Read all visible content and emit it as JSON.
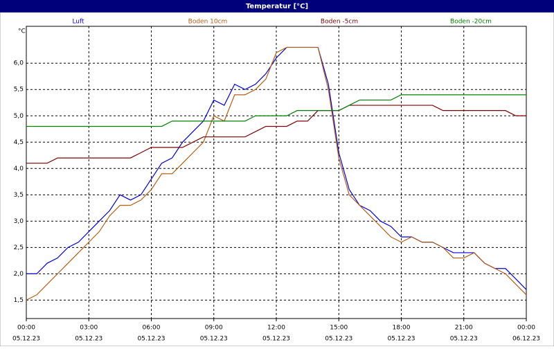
{
  "chart_data": {
    "type": "line",
    "title": "Temperatur [°C]",
    "y_unit": "°C",
    "x": [
      0,
      0.5,
      1,
      1.5,
      2,
      2.5,
      3,
      3.5,
      4,
      4.5,
      5,
      5.5,
      6,
      6.5,
      7,
      7.5,
      8,
      8.5,
      9,
      9.5,
      10,
      10.5,
      11,
      11.5,
      12,
      12.5,
      13,
      13.5,
      14,
      14.5,
      15,
      15.5,
      16,
      16.5,
      17,
      17.5,
      18,
      18.5,
      19,
      19.5,
      20,
      20.5,
      21,
      21.5,
      22,
      22.5,
      23,
      23.5,
      24
    ],
    "xlim": [
      0,
      24
    ],
    "xticks": [
      {
        "value": 0,
        "label": "00:00"
      },
      {
        "value": 3,
        "label": "03:00"
      },
      {
        "value": 6,
        "label": "06:00"
      },
      {
        "value": 9,
        "label": "09:00"
      },
      {
        "value": 12,
        "label": "12:00"
      },
      {
        "value": 15,
        "label": "15:00"
      },
      {
        "value": 18,
        "label": "18:00"
      },
      {
        "value": 21,
        "label": "21:00"
      },
      {
        "value": 24,
        "label": "00:00"
      }
    ],
    "xtick_dates": [
      "05.12.23",
      "05.12.23",
      "05.12.23",
      "05.12.23",
      "05.12.23",
      "05.12.23",
      "05.12.23",
      "05.12.23",
      "06.12.23"
    ],
    "ylim": [
      1.15,
      6.7
    ],
    "yticks": [
      {
        "value": 1.5,
        "label": "1,5"
      },
      {
        "value": 2,
        "label": "2,0"
      },
      {
        "value": 2.5,
        "label": "2,5"
      },
      {
        "value": 3,
        "label": "3,0"
      },
      {
        "value": 3.5,
        "label": "3,5"
      },
      {
        "value": 4,
        "label": "4,0"
      },
      {
        "value": 4.5,
        "label": "4,5"
      },
      {
        "value": 5,
        "label": "5,0"
      },
      {
        "value": 5.5,
        "label": "5,5"
      },
      {
        "value": 6,
        "label": "6,0"
      }
    ],
    "grid": true,
    "series": [
      {
        "name": "Luft",
        "color": "#0000e0",
        "values": [
          2.0,
          2.0,
          2.2,
          2.3,
          2.5,
          2.6,
          2.8,
          3.0,
          3.2,
          3.5,
          3.4,
          3.5,
          3.8,
          4.1,
          4.2,
          4.5,
          4.7,
          4.9,
          5.3,
          5.2,
          5.6,
          5.5,
          5.6,
          5.8,
          6.1,
          6.3,
          6.3,
          6.3,
          6.3,
          5.6,
          4.3,
          3.6,
          3.3,
          3.2,
          3.0,
          2.9,
          2.7,
          2.7,
          2.6,
          2.6,
          2.5,
          2.4,
          2.4,
          2.4,
          2.2,
          2.1,
          2.1,
          1.9,
          1.7
        ]
      },
      {
        "name": "Boden 10cm",
        "color": "#b85c10",
        "values": [
          1.5,
          1.6,
          1.8,
          2.0,
          2.2,
          2.4,
          2.6,
          2.8,
          3.1,
          3.3,
          3.3,
          3.4,
          3.6,
          3.9,
          3.9,
          4.1,
          4.3,
          4.5,
          5.0,
          4.9,
          5.4,
          5.4,
          5.5,
          5.7,
          6.2,
          6.3,
          6.3,
          6.3,
          6.3,
          5.5,
          4.2,
          3.5,
          3.3,
          3.1,
          2.9,
          2.7,
          2.6,
          2.7,
          2.6,
          2.6,
          2.5,
          2.3,
          2.3,
          2.4,
          2.2,
          2.1,
          2.0,
          1.8,
          1.6
        ]
      },
      {
        "name": "Boden -5cm",
        "color": "#800000",
        "values": [
          4.1,
          4.1,
          4.1,
          4.2,
          4.2,
          4.2,
          4.2,
          4.2,
          4.2,
          4.2,
          4.2,
          4.3,
          4.4,
          4.4,
          4.4,
          4.4,
          4.5,
          4.6,
          4.6,
          4.6,
          4.6,
          4.6,
          4.7,
          4.8,
          4.8,
          4.8,
          4.9,
          4.9,
          5.1,
          5.1,
          5.1,
          5.2,
          5.2,
          5.2,
          5.2,
          5.2,
          5.2,
          5.2,
          5.2,
          5.2,
          5.1,
          5.1,
          5.1,
          5.1,
          5.1,
          5.1,
          5.1,
          5.0,
          5.0
        ]
      },
      {
        "name": "Boden -20cm",
        "color": "#008000",
        "values": [
          4.8,
          4.8,
          4.8,
          4.8,
          4.8,
          4.8,
          4.8,
          4.8,
          4.8,
          4.8,
          4.8,
          4.8,
          4.8,
          4.8,
          4.9,
          4.9,
          4.9,
          4.9,
          4.9,
          4.9,
          4.9,
          4.9,
          5.0,
          5.0,
          5.0,
          5.0,
          5.1,
          5.1,
          5.1,
          5.1,
          5.1,
          5.2,
          5.3,
          5.3,
          5.3,
          5.3,
          5.4,
          5.4,
          5.4,
          5.4,
          5.4,
          5.4,
          5.4,
          5.4,
          5.4,
          5.4,
          5.4,
          5.4,
          5.4
        ]
      }
    ]
  }
}
